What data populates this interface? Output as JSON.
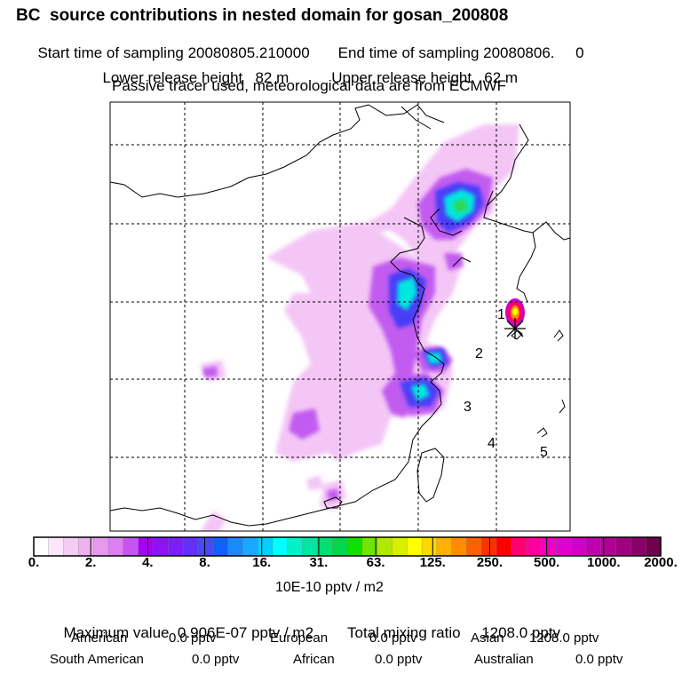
{
  "header": {
    "title": "BC  source contributions in nested domain for gosan_200808",
    "start_label": "Start time of sampling 20080805.210000",
    "end_label": "End time of sampling 20080806.     0",
    "lower_label": "Lower release height   82 m",
    "upper_label": "Upper release height   62 m",
    "note": "Passive tracer used, meteorological data are from ECMWF"
  },
  "map": {
    "site_markers": [
      "1",
      "2",
      "3",
      "4",
      "5"
    ]
  },
  "colorbar": {
    "tick_labels": [
      "0.",
      "2.",
      "4.",
      "8.",
      "16.",
      "31.",
      "63.",
      "125.",
      "250.",
      "500.",
      "1000.",
      "2000."
    ],
    "units": "10E-10 pptv / m2",
    "colors": [
      "#ffffff",
      "#fbe6fb",
      "#f5ccf5",
      "#eeb2ee",
      "#e699ef",
      "#dd7ff0",
      "#c653f2",
      "#a900f5",
      "#8f11f6",
      "#7b1ff8",
      "#6230f9",
      "#4848fb",
      "#1060ff",
      "#1b8aff",
      "#18a8ff",
      "#00d0ff",
      "#00ffff",
      "#00f0c8",
      "#00e6a0",
      "#00e070",
      "#00d84a",
      "#10e000",
      "#6ee600",
      "#b0e800",
      "#d8f000",
      "#ffff00",
      "#ffd800",
      "#ffb000",
      "#ff8c00",
      "#ff6000",
      "#ff3000",
      "#ff0000",
      "#ff0070",
      "#ff00a0",
      "#f000c0",
      "#e000d0",
      "#d000c8",
      "#c000b0",
      "#b00098",
      "#a00080",
      "#8a0068",
      "#70004f"
    ]
  },
  "summary": {
    "max_label": "Maximum value  0.906E-07 pptv / m2",
    "total_label": "Total mixing ratio     1208.0 pptv",
    "american_label": "American",
    "american_value": "0.0 pptv",
    "european_label": "European",
    "european_value": "0.0 pptv",
    "asian_label": "Asian",
    "asian_value": "1208.0 pptv",
    "south_american_label": "South American",
    "south_american_value": "0.0 pptv",
    "african_label": "African",
    "african_value": "0.0 pptv",
    "australian_label": "Australian",
    "australian_value": "0.0 pptv"
  }
}
